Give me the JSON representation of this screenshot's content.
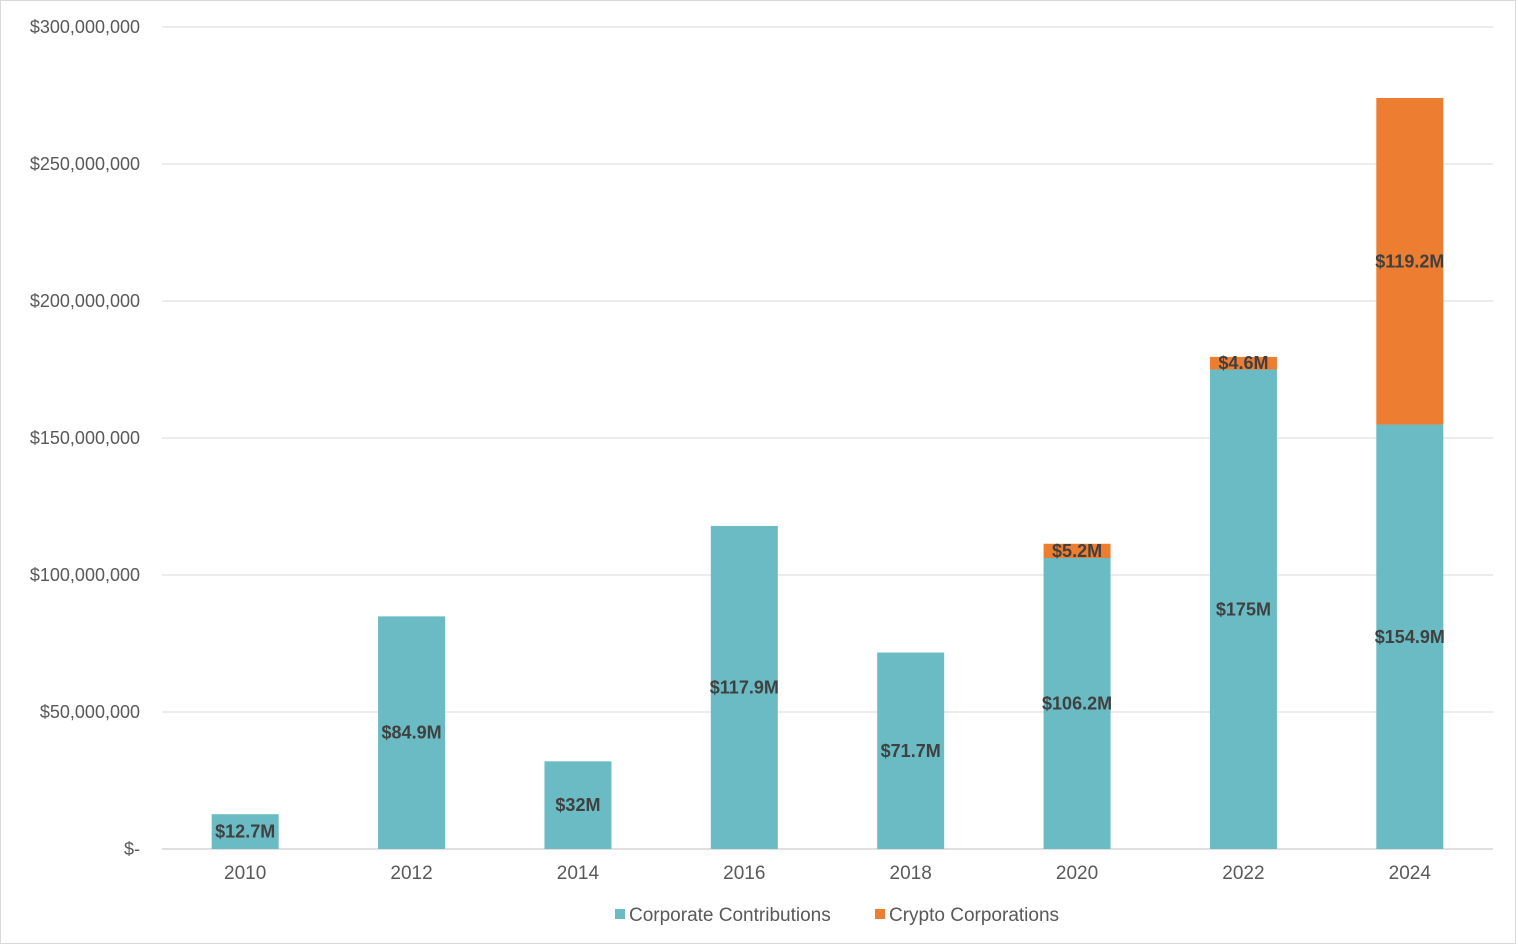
{
  "chart_data": {
    "type": "bar",
    "stacked": true,
    "categories": [
      "2010",
      "2012",
      "2014",
      "2016",
      "2018",
      "2020",
      "2022",
      "2024"
    ],
    "series": [
      {
        "name": "Corporate Contributions",
        "color": "#6bbbc4",
        "values": [
          12700000,
          84900000,
          32000000,
          117900000,
          71700000,
          106200000,
          175000000,
          154900000
        ],
        "labels": [
          "$12.7M",
          "$84.9M",
          "$32M",
          "$117.9M",
          "$71.7M",
          "$106.2M",
          "$175M",
          "$154.9M"
        ]
      },
      {
        "name": "Crypto Corporations",
        "color": "#ed7d31",
        "values": [
          0,
          0,
          0,
          0,
          0,
          5200000,
          4600000,
          119200000
        ],
        "labels": [
          "",
          "",
          "",
          "",
          "",
          "$5.2M",
          "$4.6M",
          "$119.2M"
        ]
      }
    ],
    "ylim": [
      0,
      300000000
    ],
    "yticks": [
      0,
      50000000,
      100000000,
      150000000,
      200000000,
      250000000,
      300000000
    ],
    "ytick_labels": [
      "$-",
      "$50,000,000",
      "$100,000,000",
      "$150,000,000",
      "$200,000,000",
      "$250,000,000",
      "$300,000,000"
    ],
    "title": "",
    "xlabel": "",
    "ylabel": "",
    "grid": true,
    "legend_position": "bottom"
  }
}
